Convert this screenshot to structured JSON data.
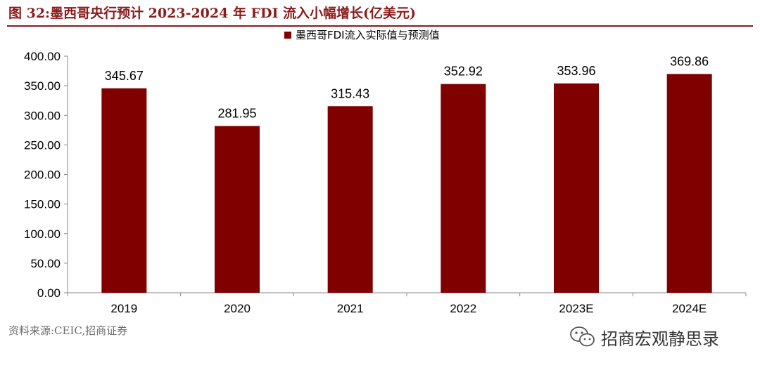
{
  "figure": {
    "title": "图 32:墨西哥央行预计 2023-2024 年 FDI 流入小幅增长(亿美元)"
  },
  "source_note": "资料来源:CEIC,招商证券",
  "watermark": {
    "text": "招商宏观静思录",
    "icon": "wechat-icon"
  },
  "colors": {
    "bar": "#800000",
    "title": "#8b1a1a"
  },
  "chart_data": {
    "type": "bar",
    "categories": [
      "2019",
      "2020",
      "2021",
      "2022",
      "2023E",
      "2024E"
    ],
    "series": [
      {
        "name": "墨西哥FDI流入实际值与预测值",
        "values": [
          345.67,
          281.95,
          315.43,
          352.92,
          353.96,
          369.86
        ]
      }
    ],
    "data_labels": [
      "345.67",
      "281.95",
      "315.43",
      "352.92",
      "353.96",
      "369.86"
    ],
    "ylim": [
      0,
      400
    ],
    "yticks": [
      "0.00",
      "50.00",
      "100.00",
      "150.00",
      "200.00",
      "250.00",
      "300.00",
      "350.00",
      "400.00"
    ],
    "xlabel": "",
    "ylabel": "",
    "legend_position": "top-center",
    "grid": false
  }
}
